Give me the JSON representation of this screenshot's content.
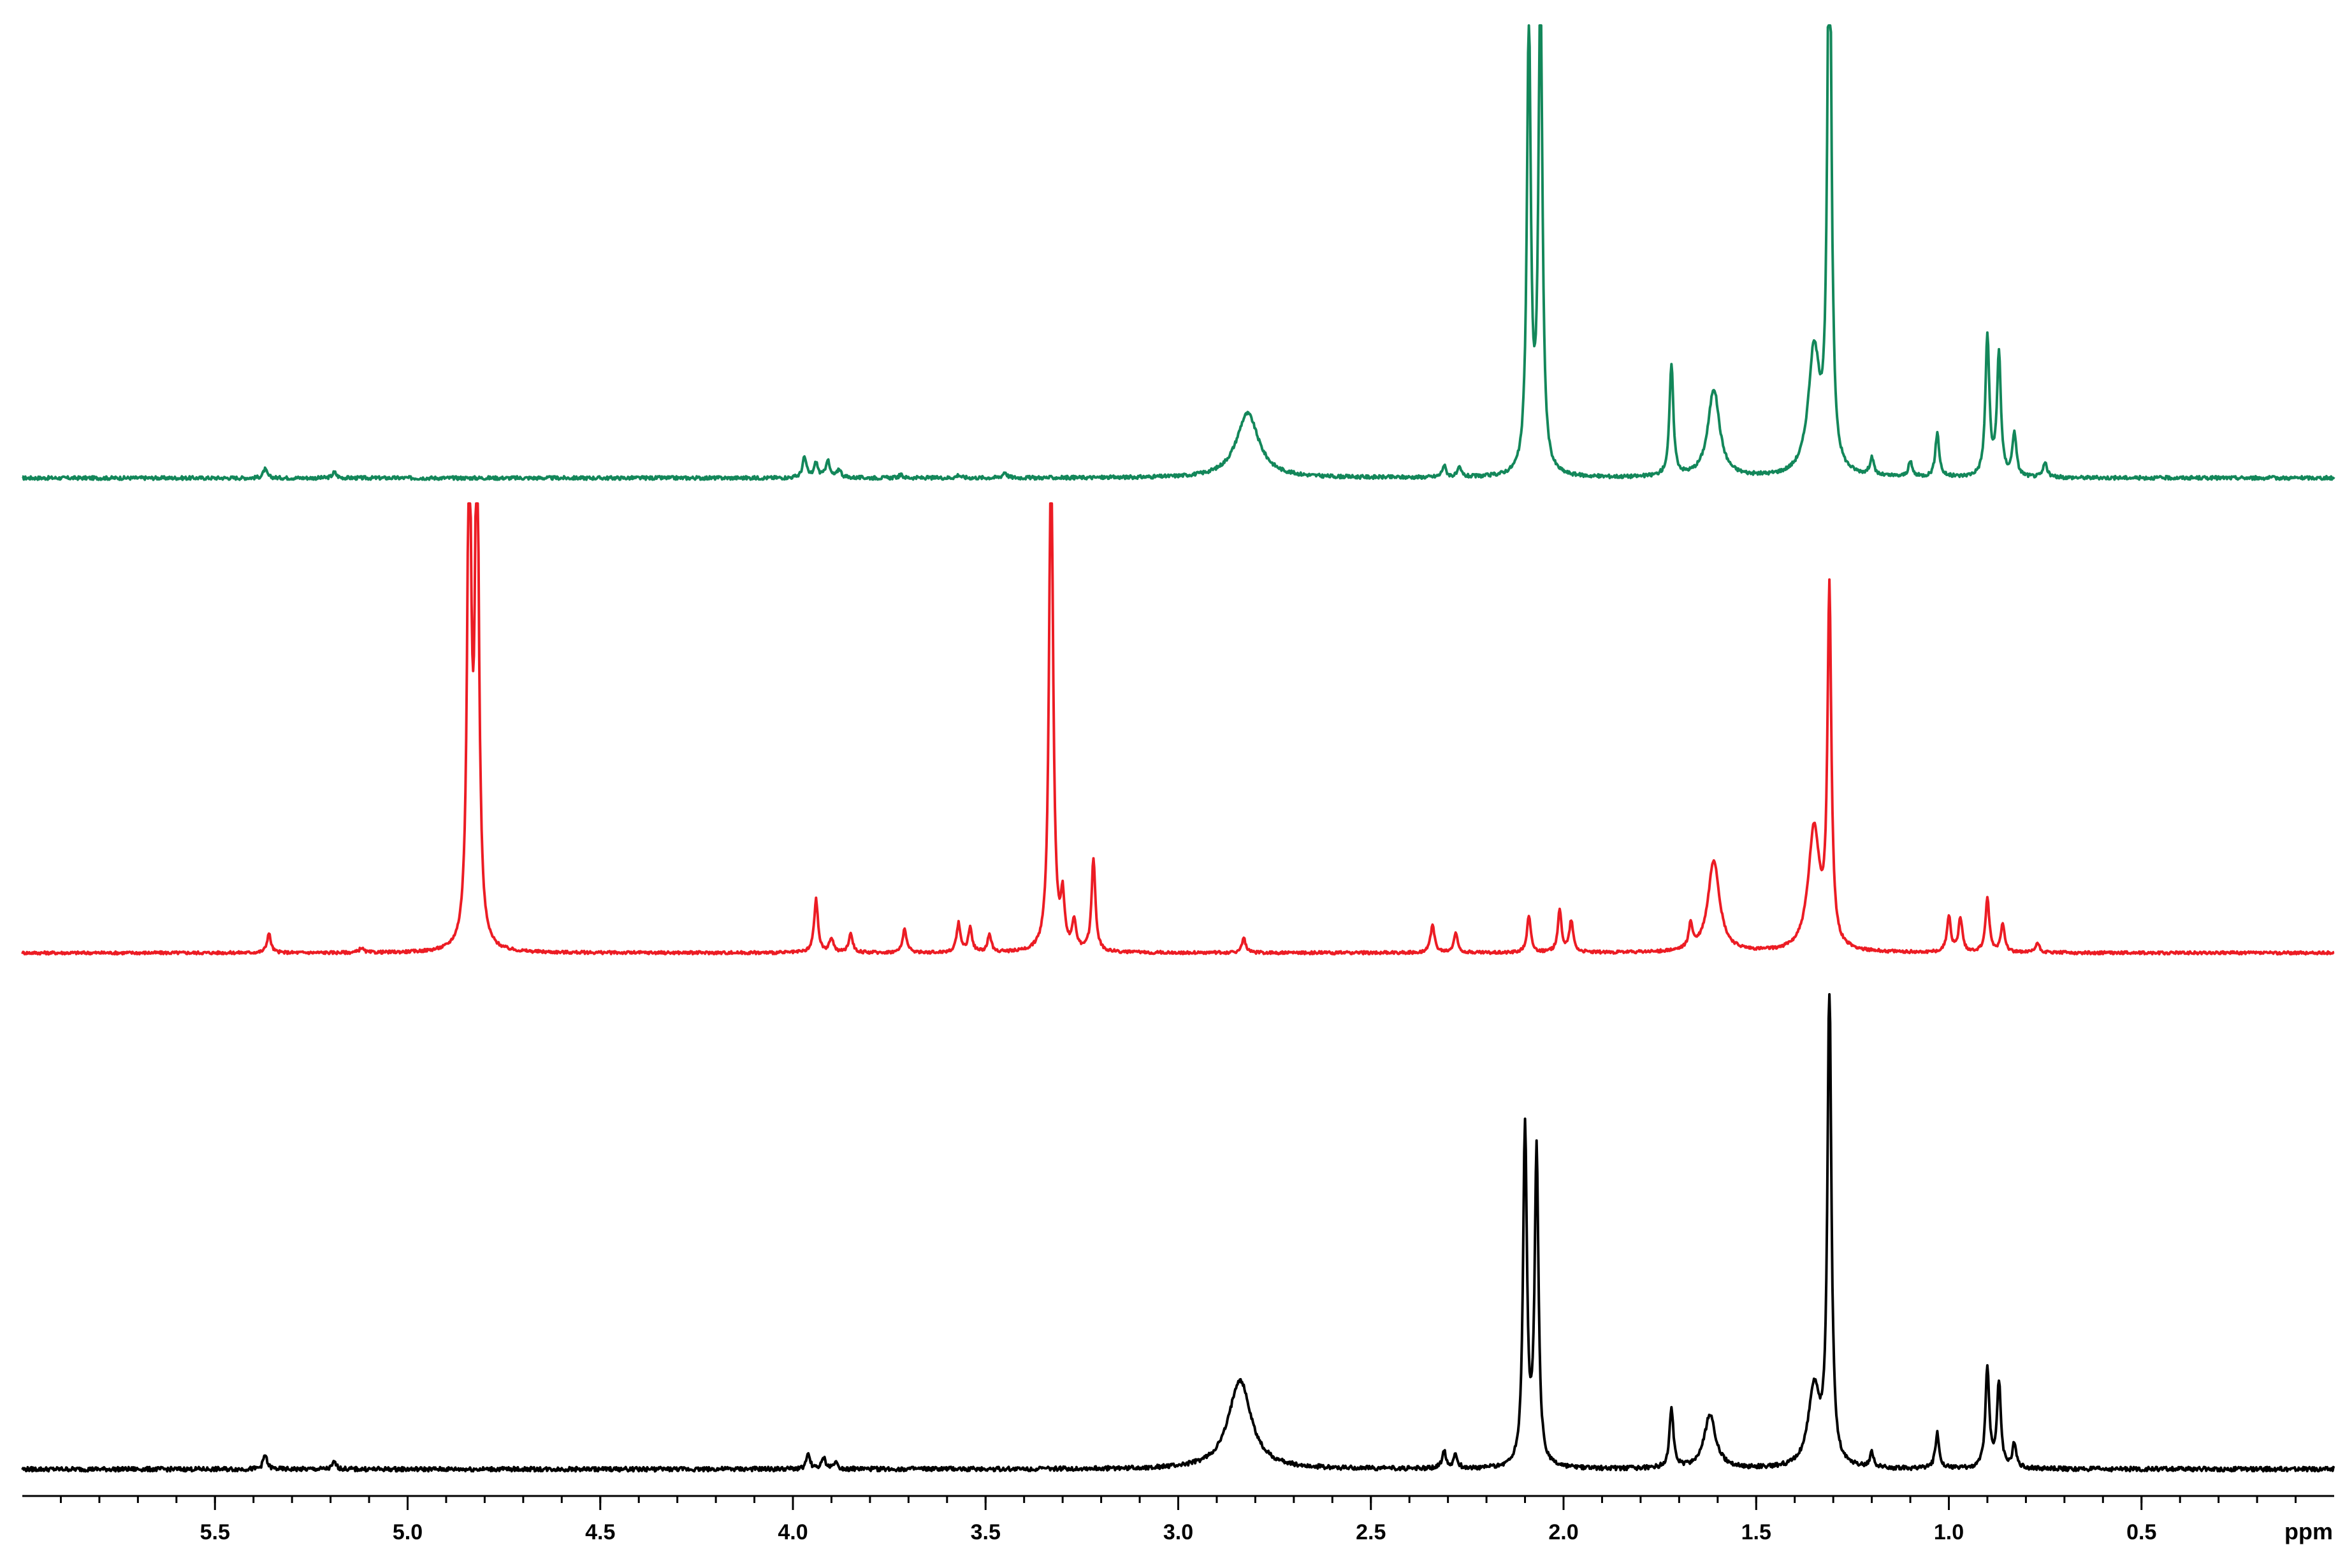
{
  "chart_data": {
    "type": "line",
    "title": "",
    "xlabel": "",
    "ylabel": "",
    "x_unit_label": "ppm",
    "x_reversed": true,
    "xlim": [
      6.0,
      0.0
    ],
    "x_ticks": [
      5.5,
      5.0,
      4.5,
      4.0,
      3.5,
      3.0,
      2.5,
      2.0,
      1.5,
      1.0,
      0.5
    ],
    "x_tick_labels": [
      "5.5",
      "5.0",
      "4.5",
      "4.0",
      "3.5",
      "3.0",
      "2.5",
      "2.0",
      "1.5",
      "1.0",
      "0.5"
    ],
    "minor_tick_step": 0.1,
    "grid": false,
    "legend": "none",
    "series": [
      {
        "color": "#13875a",
        "stack_position": "top",
        "clipped": true,
        "peaks": [
          {
            "ppm": 5.37,
            "height": 0.03
          },
          {
            "ppm": 5.19,
            "height": 0.02
          },
          {
            "ppm": 3.97,
            "height": 0.07
          },
          {
            "ppm": 3.94,
            "height": 0.05
          },
          {
            "ppm": 3.91,
            "height": 0.06
          },
          {
            "ppm": 3.88,
            "height": 0.03
          },
          {
            "ppm": 3.72,
            "height": 0.01
          },
          {
            "ppm": 3.57,
            "height": 0.01
          },
          {
            "ppm": 3.45,
            "height": 0.02
          },
          {
            "ppm": 2.82,
            "height": 0.22
          },
          {
            "ppm": 2.31,
            "height": 0.04
          },
          {
            "ppm": 2.27,
            "height": 0.03
          },
          {
            "ppm": 2.09,
            "height": 1.55
          },
          {
            "ppm": 2.06,
            "height": 1.7
          },
          {
            "ppm": 1.72,
            "height": 0.38
          },
          {
            "ppm": 1.61,
            "height": 0.3
          },
          {
            "ppm": 1.35,
            "height": 0.42
          },
          {
            "ppm": 1.31,
            "height": 2.1
          },
          {
            "ppm": 1.2,
            "height": 0.06
          },
          {
            "ppm": 1.1,
            "height": 0.05
          },
          {
            "ppm": 1.03,
            "height": 0.15
          },
          {
            "ppm": 0.9,
            "height": 0.48
          },
          {
            "ppm": 0.87,
            "height": 0.42
          },
          {
            "ppm": 0.83,
            "height": 0.15
          },
          {
            "ppm": 0.75,
            "height": 0.05
          }
        ]
      },
      {
        "color": "#ec1c24",
        "stack_position": "middle",
        "clipped": true,
        "peaks": [
          {
            "ppm": 5.36,
            "height": 0.08
          },
          {
            "ppm": 5.12,
            "height": 0.02
          },
          {
            "ppm": 4.84,
            "height": 2.2
          },
          {
            "ppm": 4.82,
            "height": 2.2
          },
          {
            "ppm": 3.94,
            "height": 0.22
          },
          {
            "ppm": 3.9,
            "height": 0.06
          },
          {
            "ppm": 3.85,
            "height": 0.08
          },
          {
            "ppm": 3.71,
            "height": 0.1
          },
          {
            "ppm": 3.57,
            "height": 0.12
          },
          {
            "ppm": 3.54,
            "height": 0.1
          },
          {
            "ppm": 3.49,
            "height": 0.07
          },
          {
            "ppm": 3.33,
            "height": 2.2
          },
          {
            "ppm": 3.3,
            "height": 0.2
          },
          {
            "ppm": 3.27,
            "height": 0.12
          },
          {
            "ppm": 3.22,
            "height": 0.38
          },
          {
            "ppm": 2.83,
            "height": 0.06
          },
          {
            "ppm": 2.34,
            "height": 0.12
          },
          {
            "ppm": 2.28,
            "height": 0.08
          },
          {
            "ppm": 2.09,
            "height": 0.15
          },
          {
            "ppm": 2.01,
            "height": 0.17
          },
          {
            "ppm": 1.98,
            "height": 0.13
          },
          {
            "ppm": 1.67,
            "height": 0.1
          },
          {
            "ppm": 1.61,
            "height": 0.38
          },
          {
            "ppm": 1.35,
            "height": 0.5
          },
          {
            "ppm": 1.31,
            "height": 1.45
          },
          {
            "ppm": 1.0,
            "height": 0.15
          },
          {
            "ppm": 0.97,
            "height": 0.14
          },
          {
            "ppm": 0.9,
            "height": 0.22
          },
          {
            "ppm": 0.86,
            "height": 0.12
          },
          {
            "ppm": 0.77,
            "height": 0.04
          }
        ]
      },
      {
        "color": "#000000",
        "stack_position": "bottom",
        "clipped": false,
        "peaks": [
          {
            "ppm": 5.37,
            "height": 0.04
          },
          {
            "ppm": 5.19,
            "height": 0.02
          },
          {
            "ppm": 3.96,
            "height": 0.04
          },
          {
            "ppm": 3.92,
            "height": 0.03
          },
          {
            "ppm": 3.89,
            "height": 0.02
          },
          {
            "ppm": 2.84,
            "height": 0.25
          },
          {
            "ppm": 2.31,
            "height": 0.05
          },
          {
            "ppm": 2.28,
            "height": 0.04
          },
          {
            "ppm": 2.1,
            "height": 0.95
          },
          {
            "ppm": 2.07,
            "height": 0.88
          },
          {
            "ppm": 1.72,
            "height": 0.17
          },
          {
            "ppm": 1.62,
            "height": 0.15
          },
          {
            "ppm": 1.35,
            "height": 0.22
          },
          {
            "ppm": 1.31,
            "height": 1.35
          },
          {
            "ppm": 1.2,
            "height": 0.04
          },
          {
            "ppm": 1.03,
            "height": 0.1
          },
          {
            "ppm": 0.9,
            "height": 0.28
          },
          {
            "ppm": 0.87,
            "height": 0.24
          },
          {
            "ppm": 0.83,
            "height": 0.07
          }
        ]
      }
    ]
  }
}
